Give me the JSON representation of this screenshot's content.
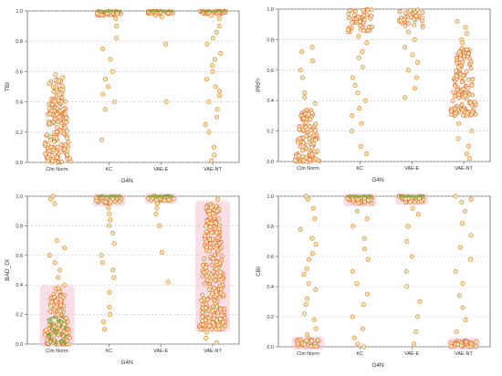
{
  "colors": {
    "point_stroke": "#e07a20",
    "point_fill": "#f3e6b2",
    "dense_fill": "#e8551e",
    "green_band": "#7fa23a",
    "pink_halo": "#f6c2d0",
    "grid": "#c9c9c9",
    "axis": "#555555"
  },
  "chart_data": [
    {
      "type": "scatter",
      "subtype": "strip",
      "xlabel": "G4N",
      "ylabel": "TBI",
      "categories": [
        "Clin Norm",
        "KC",
        "VAE-E",
        "VAE-NT"
      ],
      "yticks": [
        "0.0",
        "0.2",
        "0.4",
        "0.6",
        "0.8",
        "1.0"
      ],
      "ylim": [
        0,
        1
      ],
      "grid": true,
      "halo": false,
      "groups": [
        {
          "dense": [
            0.0,
            0.55
          ],
          "sparse": [
            0.52,
            0.56,
            0.58,
            0.48,
            0.45,
            0.5
          ]
        },
        {
          "dense": [
            0.97,
            1.0
          ],
          "sparse": [
            0.95,
            0.9,
            0.82,
            0.75,
            0.68,
            0.6,
            0.55,
            0.5,
            0.45,
            0.4,
            0.35,
            0.15
          ]
        },
        {
          "dense": [
            0.98,
            1.0
          ],
          "sparse": [
            0.97,
            0.96,
            0.78,
            0.4
          ]
        },
        {
          "dense": [
            0.98,
            1.0
          ],
          "sparse": [
            0.97,
            0.95,
            0.9,
            0.86,
            0.82,
            0.78,
            0.72,
            0.68,
            0.64,
            0.6,
            0.55,
            0.5,
            0.47,
            0.44,
            0.4,
            0.35,
            0.3,
            0.25,
            0.2,
            0.1,
            0.05,
            0.01
          ]
        }
      ]
    },
    {
      "type": "scatter",
      "subtype": "strip",
      "xlabel": "G4N",
      "ylabel": "PRFI",
      "categories": [
        "Clin Norm",
        "KC",
        "VAE-E",
        "VAE-NT"
      ],
      "yticks": [
        "0.0",
        "0.2",
        "0.4",
        "0.6",
        "0.8",
        "1.0"
      ],
      "ylim": [
        0,
        1
      ],
      "grid": true,
      "halo": false,
      "groups": [
        {
          "dense": [
            0.0,
            0.35
          ],
          "sparse": [
            0.38,
            0.42,
            0.45,
            0.55,
            0.6,
            0.66,
            0.72,
            0.75
          ]
        },
        {
          "dense": [
            0.85,
            1.0
          ],
          "sparse": [
            0.82,
            0.78,
            0.72,
            0.68,
            0.62,
            0.55,
            0.5,
            0.45,
            0.4,
            0.35,
            0.3,
            0.25,
            0.2,
            0.1,
            0.05
          ]
        },
        {
          "dense": [
            0.88,
            1.0
          ],
          "sparse": [
            0.85,
            0.8,
            0.75,
            0.7,
            0.65,
            0.6,
            0.55,
            0.48,
            0.42
          ]
        },
        {
          "dense": [
            0.3,
            0.75
          ],
          "sparse": [
            0.92,
            0.88,
            0.84,
            0.8,
            0.78,
            0.25,
            0.2,
            0.15,
            0.1,
            0.05,
            0.02
          ]
        }
      ]
    },
    {
      "type": "scatter",
      "subtype": "strip",
      "xlabel": "G4N",
      "ylabel": "BAD_DI",
      "categories": [
        "Clin Norm",
        "KC",
        "VAE-E",
        "VAE-NT"
      ],
      "yticks": [
        "0.0",
        "0.2",
        "0.4",
        "0.6",
        "0.8",
        "1.0"
      ],
      "ylim": [
        0,
        1
      ],
      "grid": true,
      "halo": true,
      "groups": [
        {
          "dense": [
            0.0,
            0.38
          ],
          "sparse": [
            0.4,
            0.45,
            0.5,
            0.55,
            0.6,
            0.65,
            0.7,
            0.95,
            0.98,
            1.0
          ]
        },
        {
          "dense": [
            0.95,
            1.0
          ],
          "sparse": [
            0.92,
            0.88,
            0.84,
            0.8,
            0.75,
            0.68,
            0.6,
            0.55,
            0.5,
            0.45,
            0.35,
            0.25,
            0.2,
            0.15,
            0.1
          ]
        },
        {
          "dense": [
            0.97,
            1.0
          ],
          "sparse": [
            0.95,
            0.92,
            0.88,
            0.8,
            0.62,
            0.42
          ]
        },
        {
          "dense": [
            0.1,
            0.95
          ],
          "sparse": [
            0.98,
            0.08,
            0.04,
            0.01
          ]
        }
      ]
    },
    {
      "type": "scatter",
      "subtype": "strip",
      "xlabel": "G4N",
      "ylabel": "CBI",
      "categories": [
        "Clin Norm",
        "KC",
        "VAE-E",
        "VAE-NT"
      ],
      "yticks": [
        "0.0",
        "0.2",
        "0.4",
        "0.6",
        "0.8",
        "1.0"
      ],
      "ylim": [
        0,
        1
      ],
      "grid": true,
      "halo": true,
      "groups": [
        {
          "dense": [
            0.0,
            0.05
          ],
          "sparse": [
            0.08,
            0.12,
            0.18,
            0.22,
            0.28,
            0.32,
            0.38,
            0.42,
            0.48,
            0.52,
            0.58,
            0.62,
            0.68,
            0.72,
            0.78,
            0.85,
            0.92,
            0.98,
            1.0
          ]
        },
        {
          "dense": [
            0.95,
            1.0
          ],
          "sparse": [
            0.9,
            0.85,
            0.8,
            0.72,
            0.65,
            0.58,
            0.5,
            0.42,
            0.35,
            0.28,
            0.2,
            0.12,
            0.06,
            0.02,
            0.0
          ]
        },
        {
          "dense": [
            0.96,
            1.0
          ],
          "sparse": [
            0.92,
            0.88,
            0.8,
            0.7,
            0.6,
            0.5,
            0.4,
            0.3,
            0.2,
            0.1,
            0.02
          ]
        },
        {
          "dense": [
            0.0,
            0.04
          ],
          "sparse": [
            0.96,
            0.98,
            1.0,
            0.9,
            0.82,
            0.74,
            0.66,
            0.58,
            0.5,
            0.42,
            0.34,
            0.26,
            0.18,
            0.1
          ]
        }
      ]
    }
  ]
}
